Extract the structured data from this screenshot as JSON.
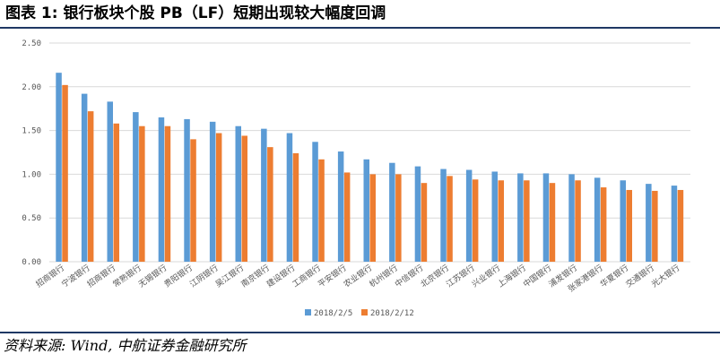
{
  "page": {
    "title": "图表 1: 银行板块个股 PB（LF）短期出现较大幅度回调",
    "source": "资料来源: Wind, 中航证券金融研究所"
  },
  "colors": {
    "series_1": "#5b9bd5",
    "series_2": "#ed7d31",
    "gridline": "#d9d9d9",
    "rule": "#1f3864"
  },
  "chart_data": {
    "type": "bar",
    "title": "",
    "xlabel": "",
    "ylabel": "",
    "ylim": [
      0,
      2.5
    ],
    "yticks": [
      "0.00",
      "0.50",
      "1.00",
      "1.50",
      "2.00",
      "2.50"
    ],
    "grid": true,
    "legend_position": "bottom",
    "categories": [
      "招商银行",
      "宁波银行",
      "招商银行",
      "常熟银行",
      "无锡银行",
      "贵阳银行",
      "江阴银行",
      "吴江银行",
      "南京银行",
      "建设银行",
      "工商银行",
      "平安银行",
      "农业银行",
      "杭州银行",
      "中信银行",
      "北京银行",
      "江苏银行",
      "兴业银行",
      "上海银行",
      "中国银行",
      "浦发银行",
      "张家港银行",
      "华夏银行",
      "交通银行",
      "光大银行"
    ],
    "series": [
      {
        "name": "2018/2/5",
        "values": [
          2.16,
          1.92,
          1.83,
          1.71,
          1.65,
          1.63,
          1.6,
          1.55,
          1.52,
          1.47,
          1.37,
          1.26,
          1.17,
          1.13,
          1.09,
          1.06,
          1.05,
          1.03,
          1.01,
          1.01,
          1.0,
          0.96,
          0.93,
          0.89,
          0.87
        ]
      },
      {
        "name": "2018/2/12",
        "values": [
          2.02,
          1.72,
          1.58,
          1.55,
          1.55,
          1.4,
          1.47,
          1.44,
          1.31,
          1.24,
          1.17,
          1.02,
          1.0,
          1.0,
          0.9,
          0.98,
          0.94,
          0.93,
          0.93,
          0.9,
          0.93,
          0.85,
          0.82,
          0.81,
          0.82
        ]
      }
    ]
  }
}
